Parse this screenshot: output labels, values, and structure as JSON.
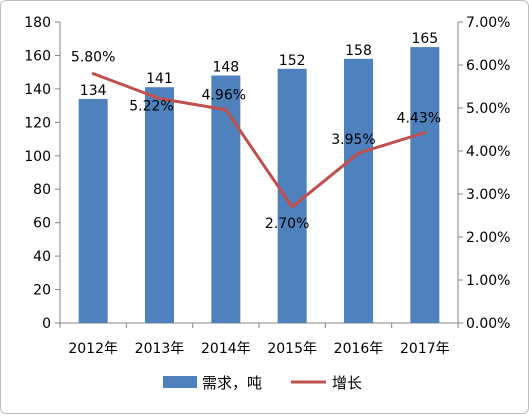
{
  "chart_data": {
    "type": "bar",
    "categories": [
      "2012年",
      "2013年",
      "2014年",
      "2015年",
      "2016年",
      "2017年"
    ],
    "series": [
      {
        "name": "需求，吨",
        "type": "bar",
        "axis": "left",
        "values": [
          134,
          141,
          148,
          152,
          158,
          165
        ],
        "labels": [
          "134",
          "141",
          "148",
          "152",
          "158",
          "165"
        ],
        "color": "#4f81bd"
      },
      {
        "name": "增长",
        "type": "line",
        "axis": "right",
        "values": [
          5.8,
          5.22,
          4.96,
          2.7,
          3.95,
          4.43
        ],
        "labels": [
          "5.80%",
          "5.22%",
          "4.96%",
          "2.70%",
          "3.95%",
          "4.43%"
        ],
        "color": "#c0504d"
      }
    ],
    "left_axis": {
      "min": 0,
      "max": 180,
      "ticks": [
        "0",
        "20",
        "40",
        "60",
        "80",
        "100",
        "120",
        "140",
        "160",
        "180"
      ]
    },
    "right_axis": {
      "min": 0,
      "max": 7,
      "ticks": [
        "0.00%",
        "1.00%",
        "2.00%",
        "3.00%",
        "4.00%",
        "5.00%",
        "6.00%",
        "7.00%"
      ]
    },
    "legend": {
      "position": "bottom",
      "items": [
        "需求，吨",
        "增长"
      ]
    },
    "grid": false
  }
}
